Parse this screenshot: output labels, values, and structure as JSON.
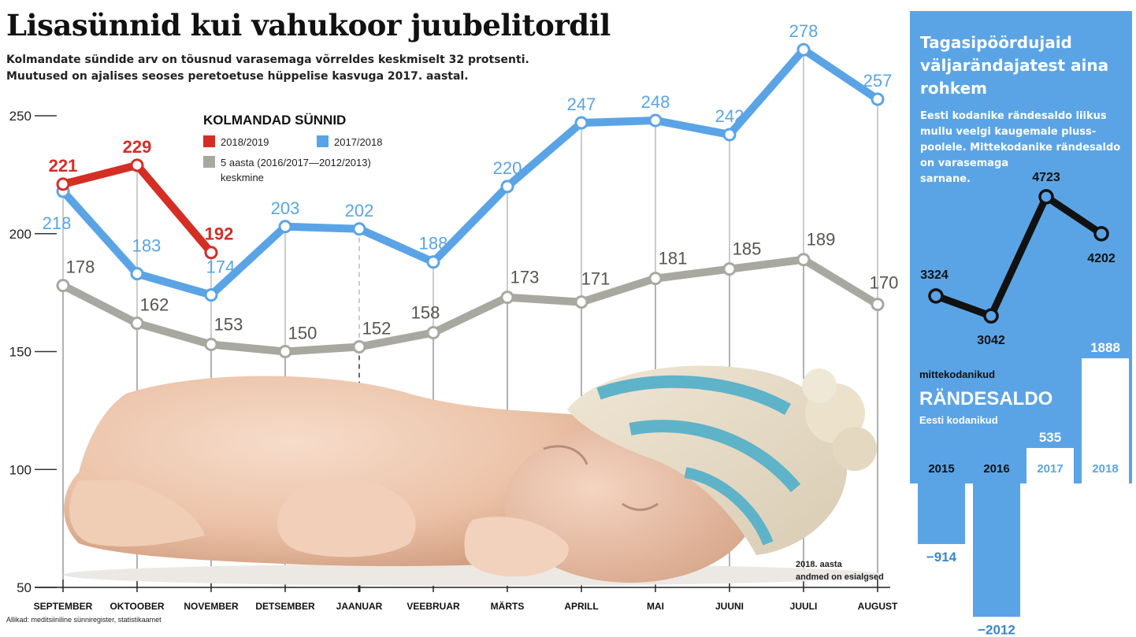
{
  "title": "Lisasünnid kui vahukoor juubelitordil",
  "subtitle_lines": [
    "Kolmandate sündide arv on tõusnud varasemaga võrreldes keskmiselt 32 protsenti.",
    "Muutused on ajalises seoses peretoetuse hüppelise kasvuga 2017. aastal."
  ],
  "source": "Allikad: meditsiiniline sünniregister, statistikaamet",
  "footnote_lines": [
    "2018. aasta",
    "andmed on esialgsed"
  ],
  "colors": {
    "red": "#d42e25",
    "blue": "#5aa4e6",
    "gray": "#a8a8a0",
    "panel": "#5aa4e6",
    "dark": "#111111"
  },
  "chart_data": [
    {
      "type": "line",
      "title": "KOLMANDAD SÜNNID",
      "categories": [
        "SEPTEMBER",
        "OKTOOBER",
        "NOVEMBER",
        "DETSEMBER",
        "JAANUAR",
        "VEEBRUAR",
        "MÄRTS",
        "APRILL",
        "MAI",
        "JUUNI",
        "JUULI",
        "AUGUST"
      ],
      "ylim": [
        50,
        250
      ],
      "yticks": [
        50,
        100,
        150,
        200,
        250
      ],
      "highlight_category": "JAANUAR",
      "series": [
        {
          "name": "2018/2019",
          "color": "#d42e25",
          "values": [
            221,
            229,
            192,
            null,
            null,
            null,
            null,
            null,
            null,
            null,
            null,
            null
          ]
        },
        {
          "name": "2017/2018",
          "color": "#5aa4e6",
          "values": [
            218,
            183,
            174,
            203,
            202,
            188,
            220,
            247,
            248,
            242,
            278,
            257
          ]
        },
        {
          "name": "5 aasta (2016/2017—2012/2013)",
          "name_line2": "keskmine",
          "color": "#a8a8a0",
          "values": [
            178,
            162,
            153,
            150,
            152,
            158,
            173,
            171,
            181,
            185,
            189,
            170
          ]
        }
      ]
    },
    {
      "type": "line",
      "title": "mittekodanikud",
      "categories": [
        "2015",
        "2016",
        "2017",
        "2018"
      ],
      "values": [
        3324,
        3042,
        4723,
        4202
      ]
    },
    {
      "type": "bar",
      "title": "RÄNDESALDO",
      "subtitle": "Eesti kodanikud",
      "categories": [
        "2015",
        "2016",
        "2017",
        "2018"
      ],
      "values": [
        -914,
        -2012,
        535,
        1888
      ],
      "value_labels": [
        "−914",
        "−2012",
        "535",
        "1888"
      ]
    }
  ],
  "side": {
    "title_lines": [
      "Tagasipöördujaid",
      "väljarändajatest aina",
      "rohkem"
    ],
    "text_lines": [
      "Eesti kodanike rändesaldo liikus",
      "mullu veelgi kaugemale pluss-",
      "poolele. Mittekodanike rändesaldo",
      "on varasemaga",
      "sarnane."
    ]
  }
}
